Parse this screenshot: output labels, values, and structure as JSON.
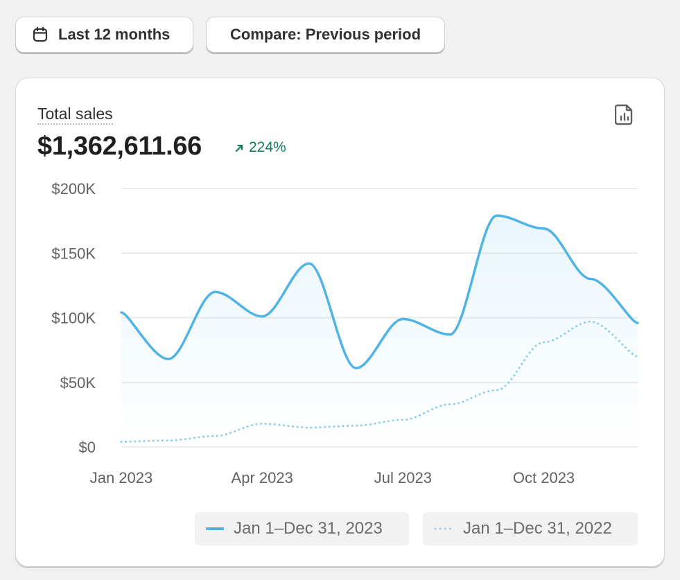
{
  "toolbar": {
    "range_label": "Last 12 months",
    "compare_label": "Compare: Previous period"
  },
  "card": {
    "title": "Total sales",
    "total": "$1,362,611.66",
    "change": "224%"
  },
  "colors": {
    "current": "#4fb3e5",
    "previous": "#8fcdee",
    "positive": "#0f7b5f",
    "grid": "#e6e6e6"
  },
  "chart_data": {
    "type": "line",
    "y_ticks": [
      "$200K",
      "$150K",
      "$100K",
      "$50K",
      "$0"
    ],
    "x_ticks": [
      "Jan 2023",
      "Apr 2023",
      "Jul 2023",
      "Oct 2023"
    ],
    "ylim": [
      0,
      200000
    ],
    "grid": true,
    "legend_position": "bottom-right",
    "series": [
      {
        "name": "Jan 1–Dec 31, 2023",
        "style": "solid",
        "values": [
          104000,
          68000,
          120000,
          101000,
          142000,
          61000,
          99000,
          87000,
          179000,
          169000,
          130000,
          96000
        ]
      },
      {
        "name": "Jan 1–Dec 31, 2022",
        "style": "dotted",
        "values": [
          4000,
          5000,
          8500,
          18000,
          15000,
          16500,
          21000,
          33000,
          44000,
          81000,
          97000,
          70000
        ]
      }
    ]
  }
}
